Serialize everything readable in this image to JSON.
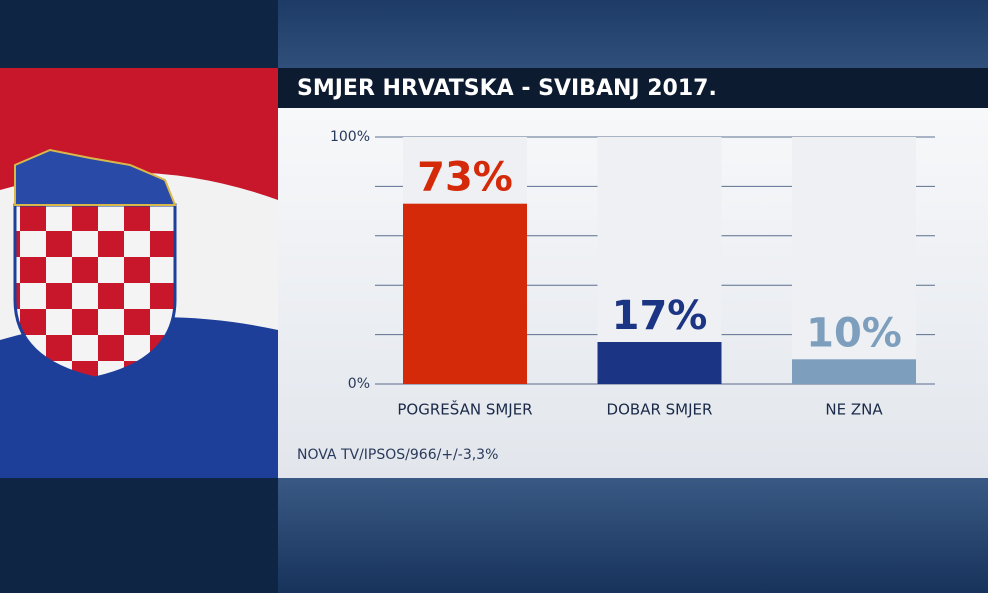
{
  "chart_data": {
    "type": "bar",
    "title": "SMJER HRVATSKA - SVIBANJ 2017.",
    "categories": [
      "POGREŠAN SMJER",
      "DOBAR SMJER",
      "NE ZNA"
    ],
    "values": [
      73,
      17,
      10
    ],
    "value_labels": [
      "73%",
      "17%",
      "10%"
    ],
    "colors": [
      "#d42a0a",
      "#1b3584",
      "#7d9fbd"
    ],
    "ylim": [
      0,
      100
    ],
    "yticks": [
      {
        "value": 0,
        "label": "0%"
      },
      {
        "value": 100,
        "label": "100%"
      }
    ],
    "gridlines": [
      0,
      20,
      40,
      60,
      80,
      100
    ],
    "source": "NOVA TV/IPSOS/966/+/-3,3%"
  }
}
